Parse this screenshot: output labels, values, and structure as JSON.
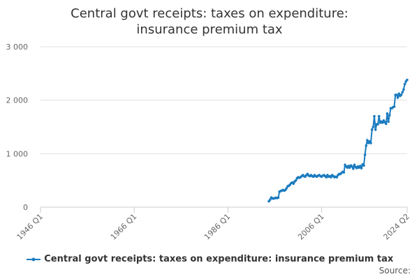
{
  "chart_data": {
    "type": "line",
    "title": "Central govt receipts: taxes on expenditure: insurance premium tax",
    "source": "Source:",
    "x": [
      1994.75,
      1995,
      1995.25,
      1995.5,
      1995.75,
      1996,
      1996.25,
      1996.5,
      1996.75,
      1997,
      1997.25,
      1997.5,
      1997.75,
      1998,
      1998.25,
      1998.5,
      1998.75,
      1999,
      1999.25,
      1999.5,
      1999.75,
      2000,
      2000.25,
      2000.5,
      2000.75,
      2001,
      2001.25,
      2001.5,
      2001.75,
      2002,
      2002.25,
      2002.5,
      2002.75,
      2003,
      2003.25,
      2003.5,
      2003.75,
      2004,
      2004.25,
      2004.5,
      2004.75,
      2005,
      2005.25,
      2005.5,
      2005.75,
      2006,
      2006.25,
      2006.5,
      2006.75,
      2007,
      2007.25,
      2007.5,
      2007.75,
      2008,
      2008.25,
      2008.5,
      2008.75,
      2009,
      2009.25,
      2009.5,
      2009.75,
      2010,
      2010.25,
      2010.5,
      2010.75,
      2011,
      2011.25,
      2011.5,
      2011.75,
      2012,
      2012.25,
      2012.5,
      2012.75,
      2013,
      2013.25,
      2013.5,
      2013.75,
      2014,
      2014.25,
      2014.5,
      2014.75,
      2015,
      2015.25,
      2015.5,
      2015.75,
      2016,
      2016.25,
      2016.5,
      2016.75,
      2017,
      2017.25,
      2017.5,
      2017.75,
      2018,
      2018.25,
      2018.5,
      2018.75,
      2019,
      2019.25,
      2019.5,
      2019.75,
      2020,
      2020.25,
      2020.5,
      2020.75,
      2021,
      2021.25,
      2021.5,
      2021.75,
      2022,
      2022.25,
      2022.5,
      2022.75,
      2023,
      2023.25,
      2023.5,
      2023.75,
      2024,
      2024.25
    ],
    "series": [
      {
        "name": "Central govt receipts: taxes on expenditure: insurance premium tax",
        "color": "#1a7bbf",
        "values": [
          110,
          140,
          180,
          165,
          160,
          170,
          175,
          170,
          180,
          290,
          300,
          310,
          320,
          310,
          320,
          350,
          390,
          400,
          420,
          450,
          460,
          440,
          480,
          500,
          540,
          560,
          550,
          560,
          580,
          600,
          580,
          570,
          600,
          620,
          590,
          580,
          600,
          580,
          570,
          600,
          580,
          570,
          590,
          600,
          580,
          570,
          590,
          600,
          580,
          560,
          600,
          570,
          580,
          560,
          600,
          580,
          560,
          570,
          560,
          600,
          620,
          620,
          640,
          660,
          650,
          790,
          760,
          740,
          770,
          740,
          780,
          760,
          720,
          790,
          750,
          730,
          760,
          740,
          770,
          730,
          800,
          780,
          980,
          1150,
          1250,
          1200,
          1230,
          1200,
          1450,
          1500,
          1700,
          1450,
          1550,
          1550,
          1700,
          1580,
          1600,
          1580,
          1620,
          1590,
          1560,
          1750,
          1600,
          1720,
          1850,
          1850,
          1870,
          1880,
          2100,
          2100,
          2050,
          2120,
          2080,
          2100,
          2150,
          2200,
          2300,
          2350,
          2380
        ]
      }
    ],
    "xlim": [
      1946,
      2024.25
    ],
    "xticks": [
      {
        "value": 1946,
        "label": "1946 Q1"
      },
      {
        "value": 1966,
        "label": "1966 Q1"
      },
      {
        "value": 1986,
        "label": "1986 Q1"
      },
      {
        "value": 2006,
        "label": "2006 Q1"
      },
      {
        "value": 2024.25,
        "label": "2024 Q2"
      }
    ],
    "ylim": [
      0,
      3000
    ],
    "yticks": [
      0,
      {
        "value": 1000,
        "label": "1 000"
      },
      {
        "value": 2000,
        "label": "2 000"
      },
      {
        "value": 3000,
        "label": "3 000"
      }
    ],
    "grid": true
  }
}
